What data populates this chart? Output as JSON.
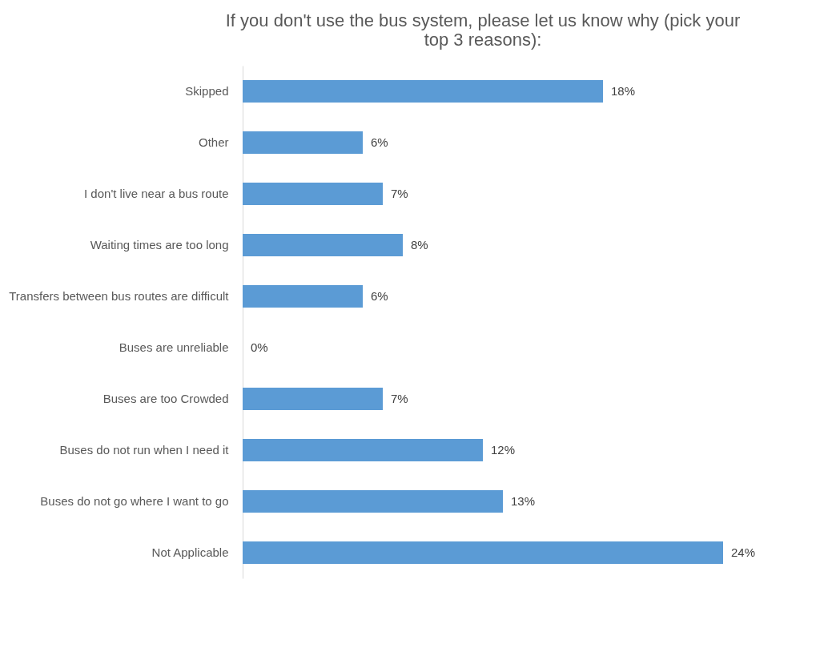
{
  "chart_data": {
    "type": "bar",
    "orientation": "horizontal",
    "title": "If you don't use the bus system, please let us know why (pick your top 3 reasons):",
    "categories": [
      "Skipped",
      "Other",
      "I don't live near a bus route",
      "Waiting times are too long",
      "Transfers between bus routes are difficult",
      "Buses are unreliable",
      "Buses are too Crowded",
      "Buses do not run when I need it",
      "Buses do not go where I want to go",
      "Not Applicable"
    ],
    "values": [
      18,
      6,
      7,
      8,
      6,
      0,
      7,
      12,
      13,
      24
    ],
    "value_labels": [
      "18%",
      "6%",
      "7%",
      "8%",
      "6%",
      "0%",
      "7%",
      "12%",
      "13%",
      "24%"
    ],
    "color": "#5b9bd5"
  }
}
